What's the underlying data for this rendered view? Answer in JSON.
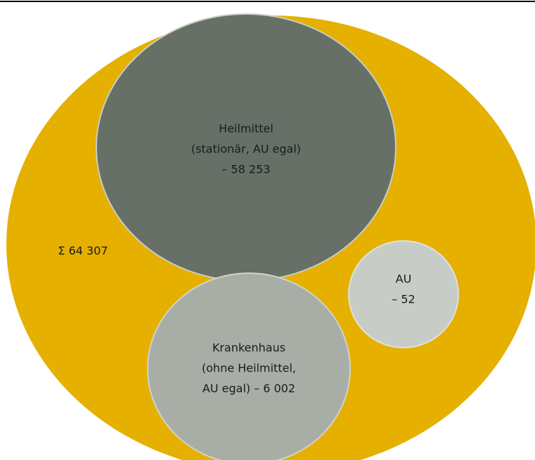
{
  "total": {
    "label": "Σ 64 307"
  },
  "nodes": [
    {
      "lines": [
        "Heilmittel",
        "(stationär, AU egal)",
        "– 58 253"
      ]
    },
    {
      "lines": [
        "Krankenhaus",
        "(ohne Heilmittel,",
        "AU egal) – 6 002"
      ]
    },
    {
      "lines": [
        "AU",
        "– 52"
      ]
    }
  ]
}
